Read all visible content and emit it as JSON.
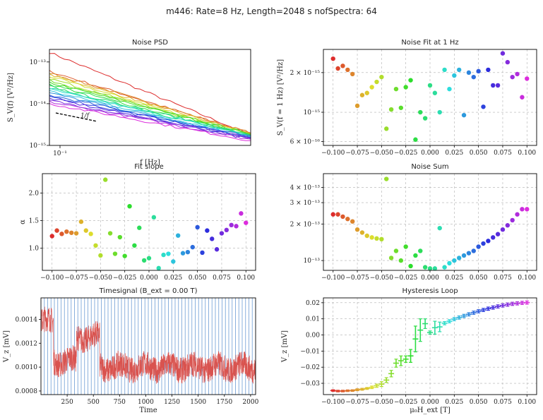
{
  "figure": {
    "suptitle": "m446: Rate=8 Hz, Length=2048 s nofSpectra: 64"
  },
  "chart_data": [
    {
      "id": "psd",
      "type": "line",
      "title": "Noise PSD",
      "xlabel": "f [Hz]",
      "ylabel": "S_V(f) [V²/Hz]",
      "xscale": "log",
      "yscale": "log",
      "xlim": [
        0.088,
        1.0
      ],
      "ylim": [
        1e-15,
        2e-13
      ],
      "ytick_labels": [
        "10⁻¹³",
        "10⁻¹⁴",
        "10⁻¹⁵"
      ],
      "xtick_labels": [
        "10⁻¹"
      ],
      "reference_label": "1/f",
      "series_note": "one PSD per field value, 1/f-like decay",
      "series": [
        {
          "f0_value": 1.7e-13,
          "f1_value": 1.8e-15
        },
        {
          "f0_value": 6e-14,
          "f1_value": 1.9e-15
        },
        {
          "f0_value": 5.5e-14,
          "f1_value": 2e-15
        },
        {
          "f0_value": 5e-14,
          "f1_value": 1.9e-15
        },
        {
          "f0_value": 4.5e-14,
          "f1_value": 1.8e-15
        },
        {
          "f0_value": 4e-14,
          "f1_value": 1.7e-15
        },
        {
          "f0_value": 3.6e-14,
          "f1_value": 1.8e-15
        },
        {
          "f0_value": 3.2e-14,
          "f1_value": 1.9e-15
        },
        {
          "f0_value": 2.9e-14,
          "f1_value": 1.7e-15
        },
        {
          "f0_value": 2.6e-14,
          "f1_value": 1.6e-15
        },
        {
          "f0_value": 2.4e-14,
          "f1_value": 1.8e-15
        },
        {
          "f0_value": 2.2e-14,
          "f1_value": 1.7e-15
        },
        {
          "f0_value": 2e-14,
          "f1_value": 1.6e-15
        },
        {
          "f0_value": 1.8e-14,
          "f1_value": 1.5e-15
        },
        {
          "f0_value": 1.6e-14,
          "f1_value": 1.6e-15
        },
        {
          "f0_value": 1.5e-14,
          "f1_value": 1.5e-15
        },
        {
          "f0_value": 1.35e-14,
          "f1_value": 1.4e-15
        },
        {
          "f0_value": 1.2e-14,
          "f1_value": 1.5e-15
        },
        {
          "f0_value": 1.1e-14,
          "f1_value": 1.4e-15
        },
        {
          "f0_value": 1e-14,
          "f1_value": 1.3e-15
        }
      ]
    },
    {
      "id": "fit1hz",
      "type": "scatter",
      "title": "Noise Fit at 1 Hz",
      "xlabel": "",
      "ylabel": "S_V(f = 1 Hz) [V²/Hz]",
      "yscale": "log",
      "xlim": [
        -0.11,
        0.11
      ],
      "ylim": [
        5.6e-16,
        3e-15
      ],
      "xtick_values": [
        -0.1,
        -0.075,
        -0.05,
        -0.025,
        0.0,
        0.025,
        0.05,
        0.075,
        0.1
      ],
      "xtick_labels": [
        "−0.100",
        "−0.075",
        "−0.050",
        "−0.025",
        "0.000",
        "0.025",
        "0.050",
        "0.075",
        "0.100"
      ],
      "ytick_values": [
        2e-15,
        1e-15,
        6e-16
      ],
      "ytick_labels": [
        "2 × 10⁻¹⁵",
        "10⁻¹⁵",
        "6 × 10⁻¹⁶"
      ],
      "x": [
        -0.1,
        -0.095,
        -0.09,
        -0.085,
        -0.08,
        -0.075,
        -0.07,
        -0.065,
        -0.06,
        -0.055,
        -0.05,
        -0.045,
        -0.04,
        -0.035,
        -0.03,
        -0.025,
        -0.02,
        -0.015,
        -0.01,
        -0.005,
        0.0,
        0.005,
        0.01,
        0.015,
        0.02,
        0.025,
        0.03,
        0.035,
        0.04,
        0.045,
        0.05,
        0.055,
        0.06,
        0.065,
        0.07,
        0.075,
        0.08,
        0.085,
        0.09,
        0.095,
        0.1
      ],
      "y": [
        2.55e-15,
        2.15e-15,
        2.25e-15,
        2.1e-15,
        1.95e-15,
        1.12e-15,
        1.35e-15,
        1.4e-15,
        1.55e-15,
        1.7e-15,
        1.85e-15,
        7.5e-16,
        1.05e-15,
        1.5e-15,
        1.08e-15,
        1.55e-15,
        1.75e-15,
        6.2e-16,
        1e-15,
        9e-16,
        1.6e-15,
        1.4e-15,
        1e-15,
        2.1e-15,
        1.5e-15,
        1.9e-15,
        2.1e-15,
        9.5e-16,
        2e-15,
        1.85e-15,
        2.05e-15,
        1.1e-15,
        2.1e-15,
        1.6e-15,
        1.6e-15,
        2.8e-15,
        2.4e-15,
        1.85e-15,
        1.95e-15,
        1.3e-15,
        1.8e-15
      ]
    },
    {
      "id": "fitslope",
      "type": "scatter",
      "title": "Fit slope",
      "xlabel": "",
      "ylabel": "α",
      "xlim": [
        -0.11,
        0.11
      ],
      "ylim": [
        0.6,
        2.35
      ],
      "xtick_values": [
        -0.1,
        -0.075,
        -0.05,
        -0.025,
        0.0,
        0.025,
        0.05,
        0.075,
        0.1
      ],
      "xtick_labels": [
        "−0.100",
        "−0.075",
        "−0.050",
        "−0.025",
        "0.000",
        "0.025",
        "0.050",
        "0.075",
        "0.100"
      ],
      "ytick_values": [
        1.0,
        1.5,
        2.0
      ],
      "ytick_labels": [
        "1.0",
        "1.5",
        "2.0"
      ],
      "x": [
        -0.1,
        -0.095,
        -0.09,
        -0.085,
        -0.08,
        -0.075,
        -0.07,
        -0.065,
        -0.06,
        -0.055,
        -0.05,
        -0.045,
        -0.04,
        -0.035,
        -0.03,
        -0.025,
        -0.02,
        -0.015,
        -0.01,
        -0.005,
        0.0,
        0.005,
        0.01,
        0.015,
        0.02,
        0.025,
        0.03,
        0.035,
        0.04,
        0.045,
        0.05,
        0.055,
        0.06,
        0.065,
        0.07,
        0.075,
        0.08,
        0.085,
        0.09,
        0.095,
        0.1
      ],
      "y": [
        1.22,
        1.32,
        1.26,
        1.3,
        1.28,
        1.27,
        1.48,
        1.32,
        1.26,
        1.05,
        0.87,
        2.24,
        1.27,
        0.9,
        1.2,
        0.86,
        1.76,
        1.05,
        1.37,
        0.78,
        0.82,
        1.56,
        0.64,
        0.88,
        0.9,
        0.76,
        1.23,
        0.91,
        0.93,
        1.02,
        1.38,
        0.92,
        1.32,
        1.17,
        0.98,
        1.27,
        1.33,
        1.42,
        1.4,
        1.63,
        1.46
      ]
    },
    {
      "id": "noisesum",
      "type": "scatter",
      "title": "Noise Sum",
      "xlabel": "",
      "ylabel": "",
      "yscale": "log",
      "xlim": [
        -0.11,
        0.11
      ],
      "ylim": [
        8.3e-14,
        5.2e-13
      ],
      "xtick_values": [
        -0.1,
        -0.075,
        -0.05,
        -0.025,
        0.0,
        0.025,
        0.05,
        0.075,
        0.1
      ],
      "xtick_labels": [
        "−0.100",
        "−0.075",
        "−0.050",
        "−0.025",
        "0.000",
        "0.025",
        "0.050",
        "0.075",
        "0.100"
      ],
      "ytick_values": [
        4e-13,
        3e-13,
        2e-13,
        1e-13
      ],
      "ytick_labels": [
        "4 × 10⁻¹³",
        "3 × 10⁻¹³",
        "2 × 10⁻¹³",
        "10⁻¹³"
      ],
      "x": [
        -0.1,
        -0.095,
        -0.09,
        -0.085,
        -0.08,
        -0.075,
        -0.07,
        -0.065,
        -0.06,
        -0.055,
        -0.05,
        -0.045,
        -0.04,
        -0.035,
        -0.03,
        -0.025,
        -0.02,
        -0.015,
        -0.01,
        -0.005,
        0.0,
        0.005,
        0.01,
        0.015,
        0.02,
        0.025,
        0.03,
        0.035,
        0.04,
        0.045,
        0.05,
        0.055,
        0.06,
        0.065,
        0.07,
        0.075,
        0.08,
        0.085,
        0.09,
        0.095,
        0.1
      ],
      "y": [
        2.4e-13,
        2.4e-13,
        2.3e-13,
        2.2e-13,
        2.1e-13,
        1.8e-13,
        1.7e-13,
        1.6e-13,
        1.55e-13,
        1.52e-13,
        1.5e-13,
        4.7e-13,
        1.05e-13,
        1.2e-13,
        1e-13,
        1.3e-13,
        9e-14,
        1.1e-13,
        1.2e-13,
        8.8e-14,
        8.6e-14,
        8.6e-14,
        1.85e-13,
        8.8e-14,
        9.5e-14,
        1e-13,
        1.05e-13,
        1.1e-13,
        1.15e-13,
        1.2e-13,
        1.3e-13,
        1.38e-13,
        1.45e-13,
        1.55e-13,
        1.65e-13,
        1.8e-13,
        1.95e-13,
        2.15e-13,
        2.4e-13,
        2.65e-13,
        2.65e-13
      ]
    },
    {
      "id": "timesignal",
      "type": "line",
      "title": "Timesignal (B_ext = 0.00 T)",
      "xlabel": "Time",
      "ylabel": "V_z [mV]",
      "xlim": [
        0,
        2048
      ],
      "ylim": [
        0.00077,
        0.00158
      ],
      "xtick_values": [
        250,
        500,
        750,
        1000,
        1250,
        1500,
        1750,
        2000
      ],
      "xtick_labels": [
        "250",
        "500",
        "750",
        "1000",
        "1250",
        "1500",
        "1750",
        "2000"
      ],
      "ytick_values": [
        0.0008,
        0.001,
        0.0012,
        0.0014
      ],
      "ytick_labels": [
        "0.0008",
        "0.0010",
        "0.0012",
        "0.0014"
      ],
      "segment_boundaries_every": 32,
      "levels": [
        {
          "t": [
            0,
            120
          ],
          "v": 0.00138
        },
        {
          "t": [
            120,
            340
          ],
          "v": 0.00105
        },
        {
          "t": [
            340,
            560
          ],
          "v": 0.00125
        },
        {
          "t": [
            560,
            2048
          ],
          "v": 0.001
        }
      ]
    },
    {
      "id": "hysteresis",
      "type": "scatter",
      "title": "Hysteresis Loop",
      "xlabel": "μ₀H_ext [T]",
      "ylabel": "V_z [mV]",
      "xlim": [
        -0.11,
        0.11
      ],
      "ylim": [
        -0.037,
        0.023
      ],
      "xtick_values": [
        -0.1,
        -0.075,
        -0.05,
        -0.025,
        0.0,
        0.025,
        0.05,
        0.075,
        0.1
      ],
      "xtick_labels": [
        "−0.100",
        "−0.075",
        "−0.050",
        "−0.025",
        "0.000",
        "0.025",
        "0.050",
        "0.075",
        "0.100"
      ],
      "ytick_values": [
        0.02,
        0.01,
        0.0,
        -0.01,
        -0.02,
        -0.03
      ],
      "ytick_labels": [
        "0.02",
        "0.01",
        "0.00",
        "−0.01",
        "−0.02",
        "−0.03"
      ],
      "x": [
        -0.1,
        -0.095,
        -0.09,
        -0.085,
        -0.08,
        -0.075,
        -0.07,
        -0.065,
        -0.06,
        -0.055,
        -0.05,
        -0.045,
        -0.04,
        -0.035,
        -0.03,
        -0.025,
        -0.02,
        -0.015,
        -0.01,
        -0.005,
        0.0,
        0.005,
        0.01,
        0.015,
        0.02,
        0.025,
        0.03,
        0.035,
        0.04,
        0.045,
        0.05,
        0.055,
        0.06,
        0.065,
        0.07,
        0.075,
        0.08,
        0.085,
        0.09,
        0.095,
        0.1
      ],
      "y": [
        -0.0345,
        -0.0348,
        -0.0348,
        -0.0346,
        -0.0345,
        -0.034,
        -0.0337,
        -0.0332,
        -0.0325,
        -0.0315,
        -0.0305,
        -0.028,
        -0.024,
        -0.0175,
        -0.016,
        -0.015,
        -0.013,
        -0.0025,
        0.003,
        0.007,
        0.0015,
        0.0045,
        0.005,
        0.0073,
        0.0085,
        0.0098,
        0.0108,
        0.0118,
        0.0128,
        0.0138,
        0.0147,
        0.0155,
        0.0163,
        0.017,
        0.0177,
        0.0183,
        0.0188,
        0.0193,
        0.0196,
        0.0199,
        0.0201
      ],
      "err": [
        0.0005,
        0.0005,
        0.0005,
        0.0005,
        0.0005,
        0.0006,
        0.0006,
        0.0006,
        0.0008,
        0.001,
        0.0015,
        0.0015,
        0.002,
        0.0025,
        0.003,
        0.002,
        0.004,
        0.008,
        0.007,
        0.003,
        0.001,
        0.004,
        0.003,
        0.001,
        0.001,
        0.001,
        0.001,
        0.001,
        0.001,
        0.001,
        0.001,
        0.001,
        0.001,
        0.001,
        0.001,
        0.001,
        0.001,
        0.001,
        0.001,
        0.001,
        0.001
      ]
    }
  ]
}
